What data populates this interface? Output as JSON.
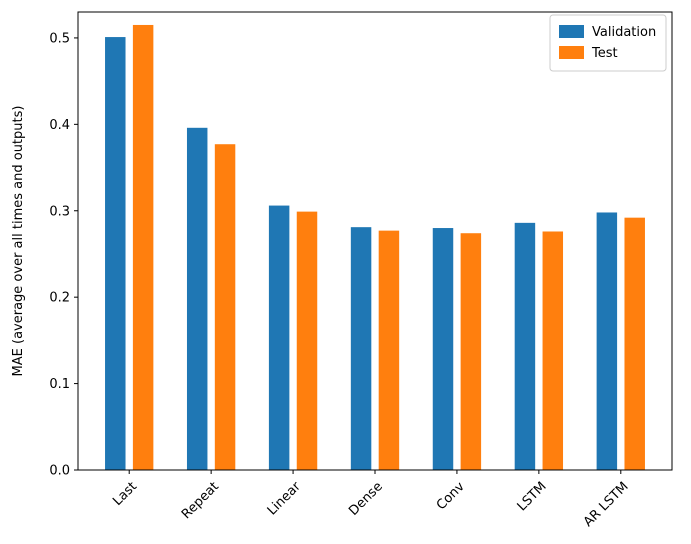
{
  "chart_data": {
    "type": "bar",
    "categories": [
      "Last",
      "Repeat",
      "Linear",
      "Dense",
      "Conv",
      "LSTM",
      "AR LSTM"
    ],
    "series": [
      {
        "name": "Validation",
        "color": "#1f77b4",
        "values": [
          0.501,
          0.396,
          0.306,
          0.281,
          0.28,
          0.286,
          0.298
        ]
      },
      {
        "name": "Test",
        "color": "#ff7f0e",
        "values": [
          0.515,
          0.377,
          0.299,
          0.277,
          0.274,
          0.276,
          0.292
        ]
      }
    ],
    "title": "",
    "xlabel": "",
    "ylabel": "MAE (average over all times and outputs)",
    "ylim": [
      0,
      0.53
    ],
    "yticks": [
      0.0,
      0.1,
      0.2,
      0.3,
      0.4,
      0.5
    ],
    "ytick_labels": [
      "0.0",
      "0.1",
      "0.2",
      "0.3",
      "0.4",
      "0.5"
    ],
    "xtick_rotation": 45,
    "grid": false,
    "legend": {
      "position": "upper right",
      "entries": [
        "Validation",
        "Test"
      ],
      "border_color": "#cccccc",
      "background": "#ffffff"
    },
    "bar_width_units": 0.25,
    "bar_offset_units": 0.17,
    "axes_color": "#000000",
    "background_color": "#ffffff"
  }
}
